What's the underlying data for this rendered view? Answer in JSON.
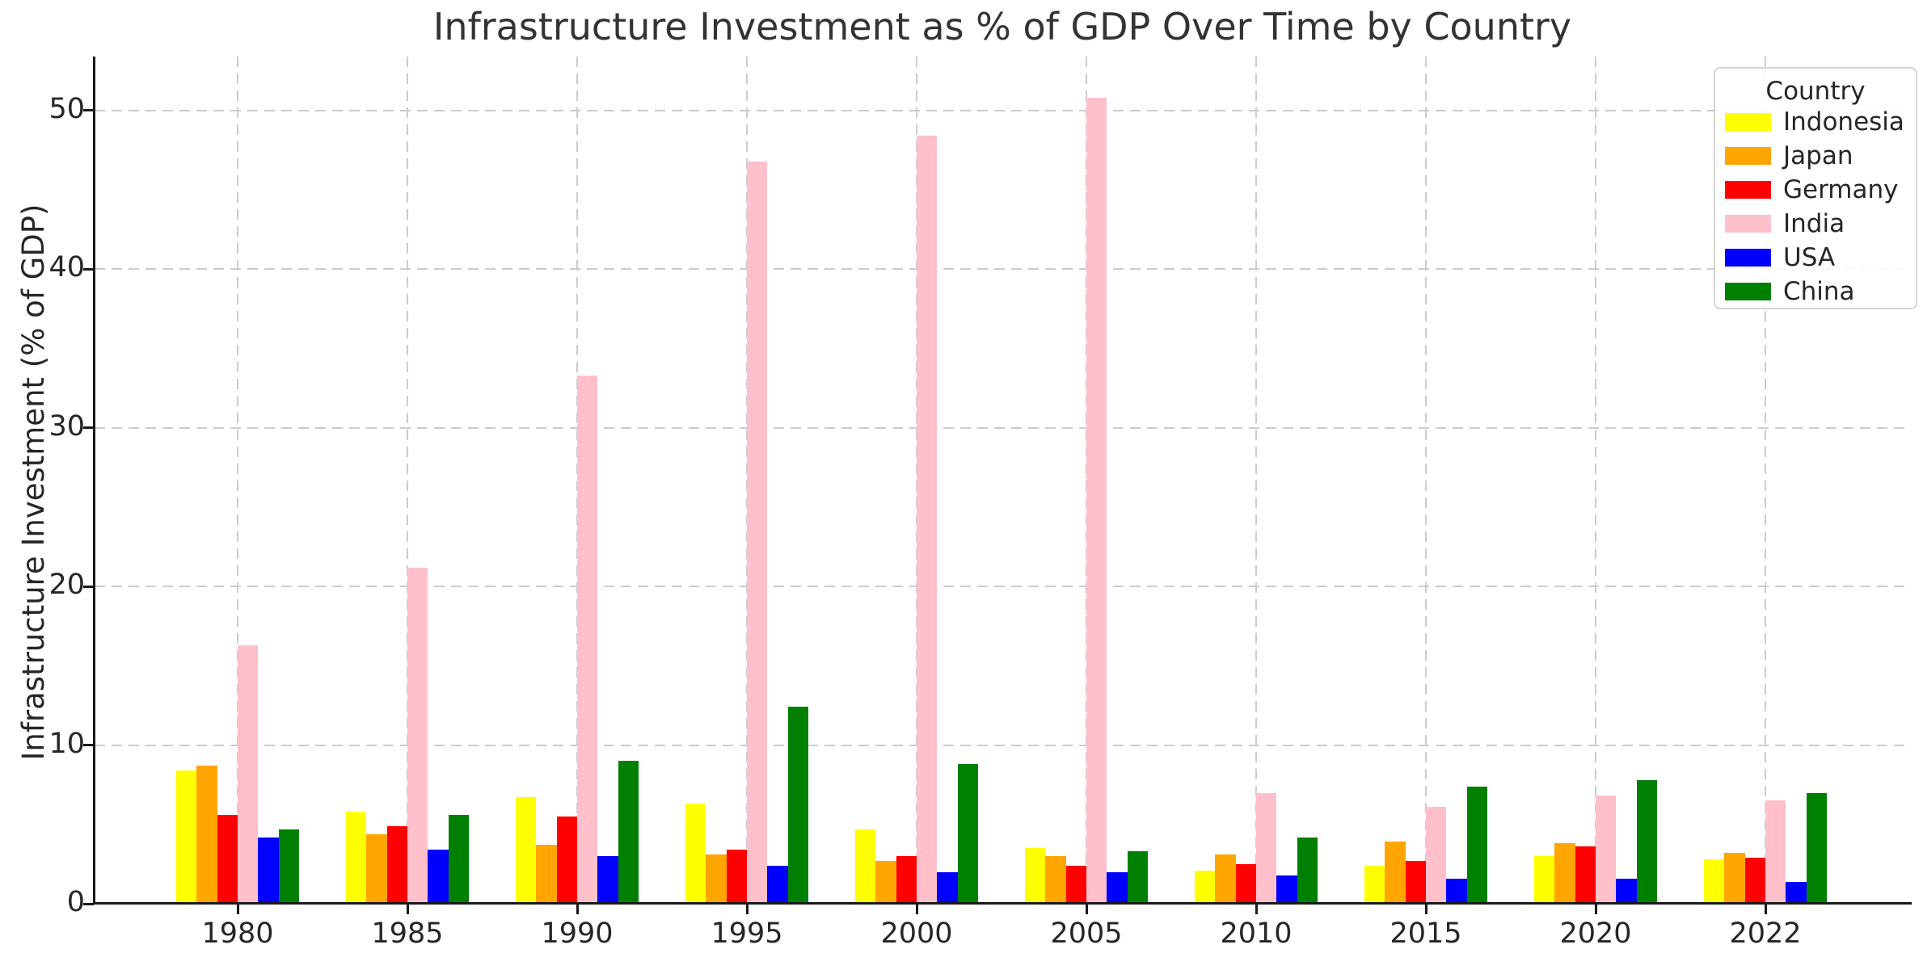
{
  "chart_data": {
    "type": "bar",
    "title": "Infrastructure Investment as % of GDP Over Time by Country",
    "xlabel": "",
    "ylabel": "Infrastructure Investment (% of GDP)",
    "ylim": [
      0,
      53.4
    ],
    "yticks": [
      0,
      10,
      20,
      30,
      40,
      50
    ],
    "grid": true,
    "legend_title": "Country",
    "legend_position": "upper right",
    "categories": [
      "1980",
      "1985",
      "1990",
      "1995",
      "2000",
      "2005",
      "2010",
      "2015",
      "2020",
      "2022"
    ],
    "series": [
      {
        "name": "Indonesia",
        "color": "#FFFF00",
        "values": [
          8.4,
          5.8,
          6.7,
          6.3,
          4.7,
          3.5,
          2.1,
          2.4,
          3.0,
          2.8
        ]
      },
      {
        "name": "Japan",
        "color": "#FFA500",
        "values": [
          8.7,
          4.4,
          3.7,
          3.1,
          2.7,
          3.0,
          3.1,
          3.9,
          3.8,
          3.2
        ]
      },
      {
        "name": "Germany",
        "color": "#FF0000",
        "values": [
          5.6,
          4.9,
          5.5,
          3.4,
          3.0,
          2.4,
          2.5,
          2.7,
          3.6,
          2.9
        ]
      },
      {
        "name": "India",
        "color": "#FFC0CB",
        "values": [
          16.3,
          21.2,
          33.3,
          46.8,
          48.4,
          50.8,
          7.0,
          6.1,
          6.8,
          6.5
        ]
      },
      {
        "name": "USA",
        "color": "#0000FF",
        "values": [
          4.2,
          3.4,
          3.0,
          2.4,
          2.0,
          2.0,
          1.8,
          1.6,
          1.6,
          1.4
        ]
      },
      {
        "name": "China",
        "color": "#008000",
        "values": [
          4.7,
          5.6,
          9.0,
          12.4,
          8.8,
          3.3,
          4.2,
          7.4,
          7.8,
          7.0
        ]
      }
    ],
    "axis_color": "#1a1a1a",
    "grid_color": "#cccccc"
  }
}
